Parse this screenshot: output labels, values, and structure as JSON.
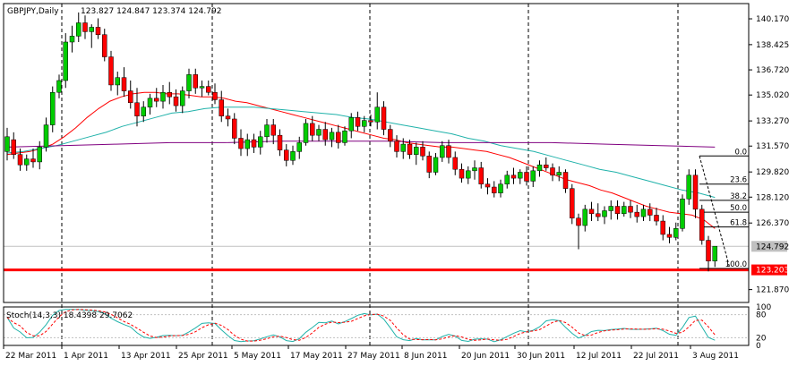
{
  "header": {
    "symbol": "GBPJPY,Daily",
    "ohlc": "123.827 124.847 123.374 124.792"
  },
  "stoch": {
    "label": "Stoch(14,3,3) 18.4398 29.7062",
    "levels": [
      "100",
      "80",
      "20",
      "0"
    ]
  },
  "colors": {
    "bull": "#00cc00",
    "bear": "#ff0000",
    "ma_fast": "#ff0000",
    "ma_mid": "#20b2aa",
    "ma_slow": "#800080",
    "support": "#ff0000",
    "price_tag": "#c0c0c0",
    "support_tag": "#ff0000"
  },
  "chart_data": {
    "type": "candlestick",
    "title": "GBPJPY,Daily",
    "ylim": [
      121.0,
      141.2
    ],
    "y_ticks": [
      "140.170",
      "138.425",
      "136.720",
      "135.020",
      "133.270",
      "131.570",
      "129.820",
      "128.120",
      "126.370",
      "124.792",
      "123.203",
      "121.870"
    ],
    "x_ticks": [
      "22 Mar 2011",
      "1 Apr 2011",
      "13 Apr 2011",
      "25 Apr 2011",
      "5 May 2011",
      "17 May 2011",
      "27 May 2011",
      "8 Jun 2011",
      "20 Jun 2011",
      "30 Jun 2011",
      "12 Jul 2011",
      "22 Jul 2011",
      "3 Aug 2011"
    ],
    "current_price": 124.792,
    "support_level": 123.203,
    "fibonacci": {
      "levels": [
        {
          "label": "0.0",
          "price": 130.9
        },
        {
          "label": "23.6",
          "price": 129.0
        },
        {
          "label": "38.2",
          "price": 127.9
        },
        {
          "label": "50.0",
          "price": 127.1
        },
        {
          "label": "61.8",
          "price": 126.1
        },
        {
          "label": "100.0",
          "price": 123.3
        }
      ]
    },
    "candles": [
      {
        "o": 131.2,
        "h": 132.8,
        "l": 130.6,
        "c": 132.2
      },
      {
        "o": 132.0,
        "h": 132.5,
        "l": 130.7,
        "c": 131.0
      },
      {
        "o": 131.0,
        "h": 131.4,
        "l": 129.9,
        "c": 130.3
      },
      {
        "o": 130.3,
        "h": 131.0,
        "l": 129.9,
        "c": 130.7
      },
      {
        "o": 130.7,
        "h": 131.4,
        "l": 130.1,
        "c": 130.5
      },
      {
        "o": 130.5,
        "h": 131.9,
        "l": 130.0,
        "c": 131.5
      },
      {
        "o": 131.5,
        "h": 133.5,
        "l": 131.2,
        "c": 133.0
      },
      {
        "o": 133.0,
        "h": 135.6,
        "l": 132.5,
        "c": 135.2
      },
      {
        "o": 135.2,
        "h": 136.4,
        "l": 134.8,
        "c": 136.0
      },
      {
        "o": 136.0,
        "h": 139.2,
        "l": 135.5,
        "c": 138.6
      },
      {
        "o": 138.6,
        "h": 139.7,
        "l": 137.9,
        "c": 139.0
      },
      {
        "o": 139.0,
        "h": 140.6,
        "l": 138.6,
        "c": 139.9
      },
      {
        "o": 139.9,
        "h": 140.4,
        "l": 138.8,
        "c": 139.3
      },
      {
        "o": 139.3,
        "h": 139.8,
        "l": 138.2,
        "c": 139.6
      },
      {
        "o": 139.6,
        "h": 140.2,
        "l": 138.8,
        "c": 139.1
      },
      {
        "o": 139.1,
        "h": 139.5,
        "l": 137.3,
        "c": 137.6
      },
      {
        "o": 137.6,
        "h": 138.0,
        "l": 135.3,
        "c": 135.7
      },
      {
        "o": 135.7,
        "h": 136.6,
        "l": 135.0,
        "c": 136.2
      },
      {
        "o": 136.2,
        "h": 136.9,
        "l": 134.9,
        "c": 135.3
      },
      {
        "o": 135.3,
        "h": 136.0,
        "l": 134.1,
        "c": 134.5
      },
      {
        "o": 134.5,
        "h": 135.5,
        "l": 132.9,
        "c": 133.6
      },
      {
        "o": 133.6,
        "h": 134.6,
        "l": 133.2,
        "c": 134.2
      },
      {
        "o": 134.2,
        "h": 135.1,
        "l": 133.7,
        "c": 134.8
      },
      {
        "o": 134.8,
        "h": 135.5,
        "l": 134.2,
        "c": 134.6
      },
      {
        "o": 134.6,
        "h": 135.7,
        "l": 134.1,
        "c": 135.2
      },
      {
        "o": 135.2,
        "h": 135.9,
        "l": 134.4,
        "c": 134.9
      },
      {
        "o": 134.9,
        "h": 135.4,
        "l": 133.9,
        "c": 134.3
      },
      {
        "o": 134.3,
        "h": 135.6,
        "l": 133.8,
        "c": 135.3
      },
      {
        "o": 135.3,
        "h": 136.8,
        "l": 134.8,
        "c": 136.4
      },
      {
        "o": 136.4,
        "h": 136.8,
        "l": 135.1,
        "c": 135.5
      },
      {
        "o": 135.5,
        "h": 136.0,
        "l": 134.9,
        "c": 135.6
      },
      {
        "o": 135.6,
        "h": 136.0,
        "l": 135.0,
        "c": 135.2
      },
      {
        "o": 135.2,
        "h": 135.8,
        "l": 134.4,
        "c": 134.7
      },
      {
        "o": 134.7,
        "h": 135.3,
        "l": 133.2,
        "c": 133.6
      },
      {
        "o": 133.6,
        "h": 134.1,
        "l": 132.9,
        "c": 133.4
      },
      {
        "o": 133.4,
        "h": 133.8,
        "l": 131.7,
        "c": 132.1
      },
      {
        "o": 132.1,
        "h": 132.7,
        "l": 130.9,
        "c": 131.4
      },
      {
        "o": 131.4,
        "h": 132.4,
        "l": 130.9,
        "c": 132.0
      },
      {
        "o": 132.0,
        "h": 132.4,
        "l": 131.1,
        "c": 131.5
      },
      {
        "o": 131.5,
        "h": 132.6,
        "l": 131.0,
        "c": 132.2
      },
      {
        "o": 132.2,
        "h": 133.4,
        "l": 131.8,
        "c": 133.0
      },
      {
        "o": 133.0,
        "h": 133.4,
        "l": 131.7,
        "c": 132.3
      },
      {
        "o": 132.3,
        "h": 132.7,
        "l": 130.9,
        "c": 131.3
      },
      {
        "o": 131.3,
        "h": 131.7,
        "l": 130.2,
        "c": 130.6
      },
      {
        "o": 130.6,
        "h": 131.6,
        "l": 130.3,
        "c": 131.2
      },
      {
        "o": 131.2,
        "h": 132.2,
        "l": 130.7,
        "c": 131.8
      },
      {
        "o": 131.8,
        "h": 133.4,
        "l": 131.6,
        "c": 133.1
      },
      {
        "o": 133.1,
        "h": 133.6,
        "l": 131.9,
        "c": 132.3
      },
      {
        "o": 132.3,
        "h": 133.0,
        "l": 131.9,
        "c": 132.7
      },
      {
        "o": 132.7,
        "h": 133.2,
        "l": 131.6,
        "c": 132.0
      },
      {
        "o": 132.0,
        "h": 132.8,
        "l": 131.5,
        "c": 132.5
      },
      {
        "o": 132.5,
        "h": 133.0,
        "l": 131.4,
        "c": 131.8
      },
      {
        "o": 131.8,
        "h": 132.9,
        "l": 131.6,
        "c": 132.6
      },
      {
        "o": 132.6,
        "h": 133.8,
        "l": 132.1,
        "c": 133.5
      },
      {
        "o": 133.5,
        "h": 133.9,
        "l": 132.6,
        "c": 132.9
      },
      {
        "o": 132.9,
        "h": 133.6,
        "l": 132.5,
        "c": 133.3
      },
      {
        "o": 133.3,
        "h": 133.7,
        "l": 132.9,
        "c": 133.2
      },
      {
        "o": 133.2,
        "h": 135.2,
        "l": 132.7,
        "c": 134.2
      },
      {
        "o": 134.2,
        "h": 134.6,
        "l": 132.3,
        "c": 132.7
      },
      {
        "o": 132.7,
        "h": 133.0,
        "l": 131.5,
        "c": 131.9
      },
      {
        "o": 131.9,
        "h": 132.3,
        "l": 130.8,
        "c": 131.2
      },
      {
        "o": 131.2,
        "h": 132.1,
        "l": 130.7,
        "c": 131.7
      },
      {
        "o": 131.7,
        "h": 132.0,
        "l": 130.7,
        "c": 131.0
      },
      {
        "o": 131.0,
        "h": 131.8,
        "l": 130.3,
        "c": 131.5
      },
      {
        "o": 131.5,
        "h": 131.9,
        "l": 130.6,
        "c": 130.9
      },
      {
        "o": 130.9,
        "h": 131.2,
        "l": 129.4,
        "c": 129.8
      },
      {
        "o": 129.8,
        "h": 131.1,
        "l": 129.6,
        "c": 130.8
      },
      {
        "o": 130.8,
        "h": 131.9,
        "l": 130.5,
        "c": 131.6
      },
      {
        "o": 131.6,
        "h": 132.0,
        "l": 130.4,
        "c": 130.8
      },
      {
        "o": 130.8,
        "h": 131.2,
        "l": 129.6,
        "c": 130.0
      },
      {
        "o": 130.0,
        "h": 130.4,
        "l": 129.1,
        "c": 129.4
      },
      {
        "o": 129.4,
        "h": 130.2,
        "l": 129.0,
        "c": 129.9
      },
      {
        "o": 129.9,
        "h": 130.6,
        "l": 129.3,
        "c": 130.1
      },
      {
        "o": 130.1,
        "h": 130.5,
        "l": 128.7,
        "c": 129.0
      },
      {
        "o": 129.0,
        "h": 129.4,
        "l": 128.3,
        "c": 128.8
      },
      {
        "o": 128.8,
        "h": 129.2,
        "l": 128.1,
        "c": 128.4
      },
      {
        "o": 128.4,
        "h": 129.3,
        "l": 128.1,
        "c": 129.0
      },
      {
        "o": 129.0,
        "h": 129.9,
        "l": 128.7,
        "c": 129.6
      },
      {
        "o": 129.6,
        "h": 130.1,
        "l": 129.0,
        "c": 129.4
      },
      {
        "o": 129.4,
        "h": 130.0,
        "l": 129.0,
        "c": 129.8
      },
      {
        "o": 129.8,
        "h": 130.2,
        "l": 128.9,
        "c": 129.2
      },
      {
        "o": 129.2,
        "h": 130.2,
        "l": 128.8,
        "c": 129.9
      },
      {
        "o": 129.9,
        "h": 130.6,
        "l": 129.5,
        "c": 130.3
      },
      {
        "o": 130.3,
        "h": 130.8,
        "l": 129.9,
        "c": 130.1
      },
      {
        "o": 130.1,
        "h": 130.4,
        "l": 129.2,
        "c": 129.6
      },
      {
        "o": 129.6,
        "h": 130.2,
        "l": 129.2,
        "c": 129.8
      },
      {
        "o": 129.8,
        "h": 130.0,
        "l": 128.4,
        "c": 128.7
      },
      {
        "o": 128.7,
        "h": 129.0,
        "l": 126.3,
        "c": 126.7
      },
      {
        "o": 126.7,
        "h": 127.0,
        "l": 124.6,
        "c": 126.2
      },
      {
        "o": 126.2,
        "h": 127.6,
        "l": 125.8,
        "c": 127.3
      },
      {
        "o": 127.3,
        "h": 127.8,
        "l": 126.5,
        "c": 127.0
      },
      {
        "o": 127.0,
        "h": 127.7,
        "l": 126.5,
        "c": 126.8
      },
      {
        "o": 126.8,
        "h": 127.5,
        "l": 126.3,
        "c": 127.2
      },
      {
        "o": 127.2,
        "h": 127.9,
        "l": 126.6,
        "c": 127.5
      },
      {
        "o": 127.5,
        "h": 127.9,
        "l": 126.6,
        "c": 127.0
      },
      {
        "o": 127.0,
        "h": 127.8,
        "l": 126.8,
        "c": 127.5
      },
      {
        "o": 127.5,
        "h": 127.9,
        "l": 126.7,
        "c": 127.1
      },
      {
        "o": 127.1,
        "h": 127.6,
        "l": 126.4,
        "c": 126.8
      },
      {
        "o": 126.8,
        "h": 127.6,
        "l": 126.5,
        "c": 127.3
      },
      {
        "o": 127.3,
        "h": 127.7,
        "l": 126.5,
        "c": 126.9
      },
      {
        "o": 126.9,
        "h": 127.4,
        "l": 126.2,
        "c": 126.5
      },
      {
        "o": 126.5,
        "h": 126.9,
        "l": 125.2,
        "c": 125.6
      },
      {
        "o": 125.6,
        "h": 126.1,
        "l": 125.0,
        "c": 125.4
      },
      {
        "o": 125.4,
        "h": 126.4,
        "l": 125.2,
        "c": 126.0
      },
      {
        "o": 126.0,
        "h": 128.3,
        "l": 125.8,
        "c": 128.0
      },
      {
        "o": 128.0,
        "h": 130.0,
        "l": 127.6,
        "c": 129.6
      },
      {
        "o": 129.6,
        "h": 130.0,
        "l": 126.7,
        "c": 127.3
      },
      {
        "o": 127.3,
        "h": 127.6,
        "l": 124.9,
        "c": 125.2
      },
      {
        "o": 125.2,
        "h": 125.5,
        "l": 123.1,
        "c": 123.8
      },
      {
        "o": 123.8,
        "h": 124.8,
        "l": 123.4,
        "c": 124.8
      }
    ],
    "series": [
      {
        "type": "line",
        "values": [
          131.0,
          131.1,
          131.2,
          131.4,
          131.7,
          132.2,
          132.8,
          133.5,
          134.1,
          134.6,
          134.9,
          135.1,
          135.2,
          135.2,
          135.1,
          135.1,
          135.0,
          134.9,
          134.9,
          134.8,
          134.6,
          134.5,
          134.3,
          134.1,
          133.9,
          133.7,
          133.5,
          133.3,
          133.1,
          132.9,
          132.7,
          132.5,
          132.3,
          132.1,
          132.0,
          131.8,
          131.7,
          131.6,
          131.5,
          131.5,
          131.4,
          131.3,
          131.2,
          131.0,
          130.8,
          130.5,
          130.2,
          129.9,
          129.6,
          129.3,
          129.1,
          128.9,
          128.6,
          128.4,
          128.1,
          127.8,
          127.5,
          127.3,
          127.1,
          127.0,
          126.9,
          126.6,
          126.0
        ]
      },
      {
        "type": "line",
        "values": [
          131.1,
          131.2,
          131.4,
          131.6,
          131.9,
          132.2,
          132.5,
          132.9,
          133.2,
          133.5,
          133.8,
          133.9,
          134.1,
          134.2,
          134.2,
          134.2,
          134.1,
          134.0,
          133.9,
          133.8,
          133.7,
          133.5,
          133.4,
          133.2,
          133.0,
          132.8,
          132.6,
          132.4,
          132.1,
          131.9,
          131.6,
          131.4,
          131.2,
          130.9,
          130.6,
          130.3,
          130.0,
          129.8,
          129.5,
          129.2,
          128.9,
          128.6,
          128.4,
          128.1
        ]
      },
      {
        "type": "line",
        "values": [
          131.5,
          131.6,
          131.7,
          131.8,
          131.8,
          131.9,
          131.9,
          131.9,
          131.8,
          131.8,
          131.8,
          131.7,
          131.6,
          131.5
        ]
      }
    ]
  }
}
